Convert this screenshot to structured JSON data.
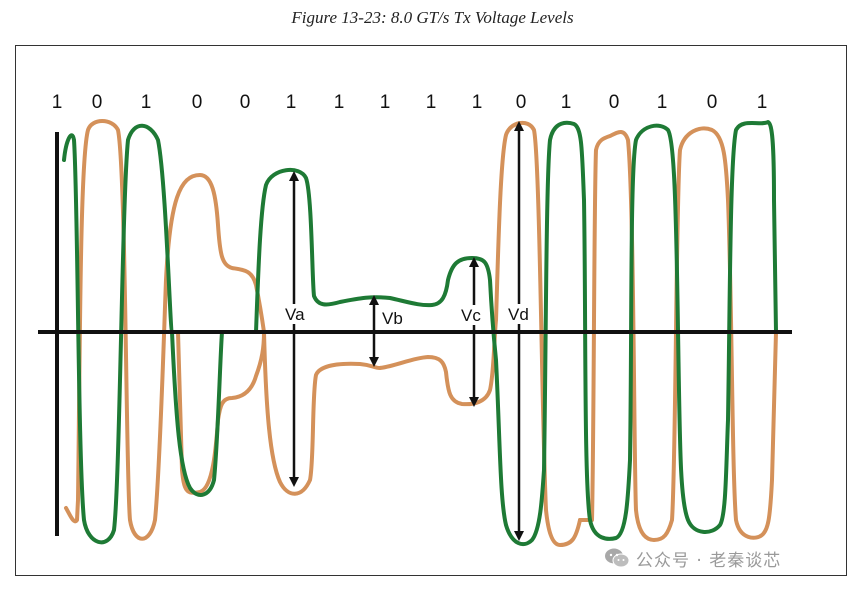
{
  "figure": {
    "title": "Figure 13-23: 8.0 GT/s Tx Voltage Levels"
  },
  "bits": [
    "1",
    "0",
    "1",
    "0",
    "0",
    "1",
    "1",
    "1",
    "1",
    "1",
    "0",
    "1",
    "0",
    "1",
    "0",
    "1"
  ],
  "voltage_labels": {
    "va": "Va",
    "vb": "Vb",
    "vc": "Vc",
    "vd": "Vd"
  },
  "colors": {
    "green_trace": "#1e7a35",
    "orange_trace": "#d4915a",
    "axis": "#111111",
    "arrow": "#111111"
  },
  "watermark": {
    "text": "公众号 · 老秦谈芯",
    "icon": "wechat-icon"
  }
}
